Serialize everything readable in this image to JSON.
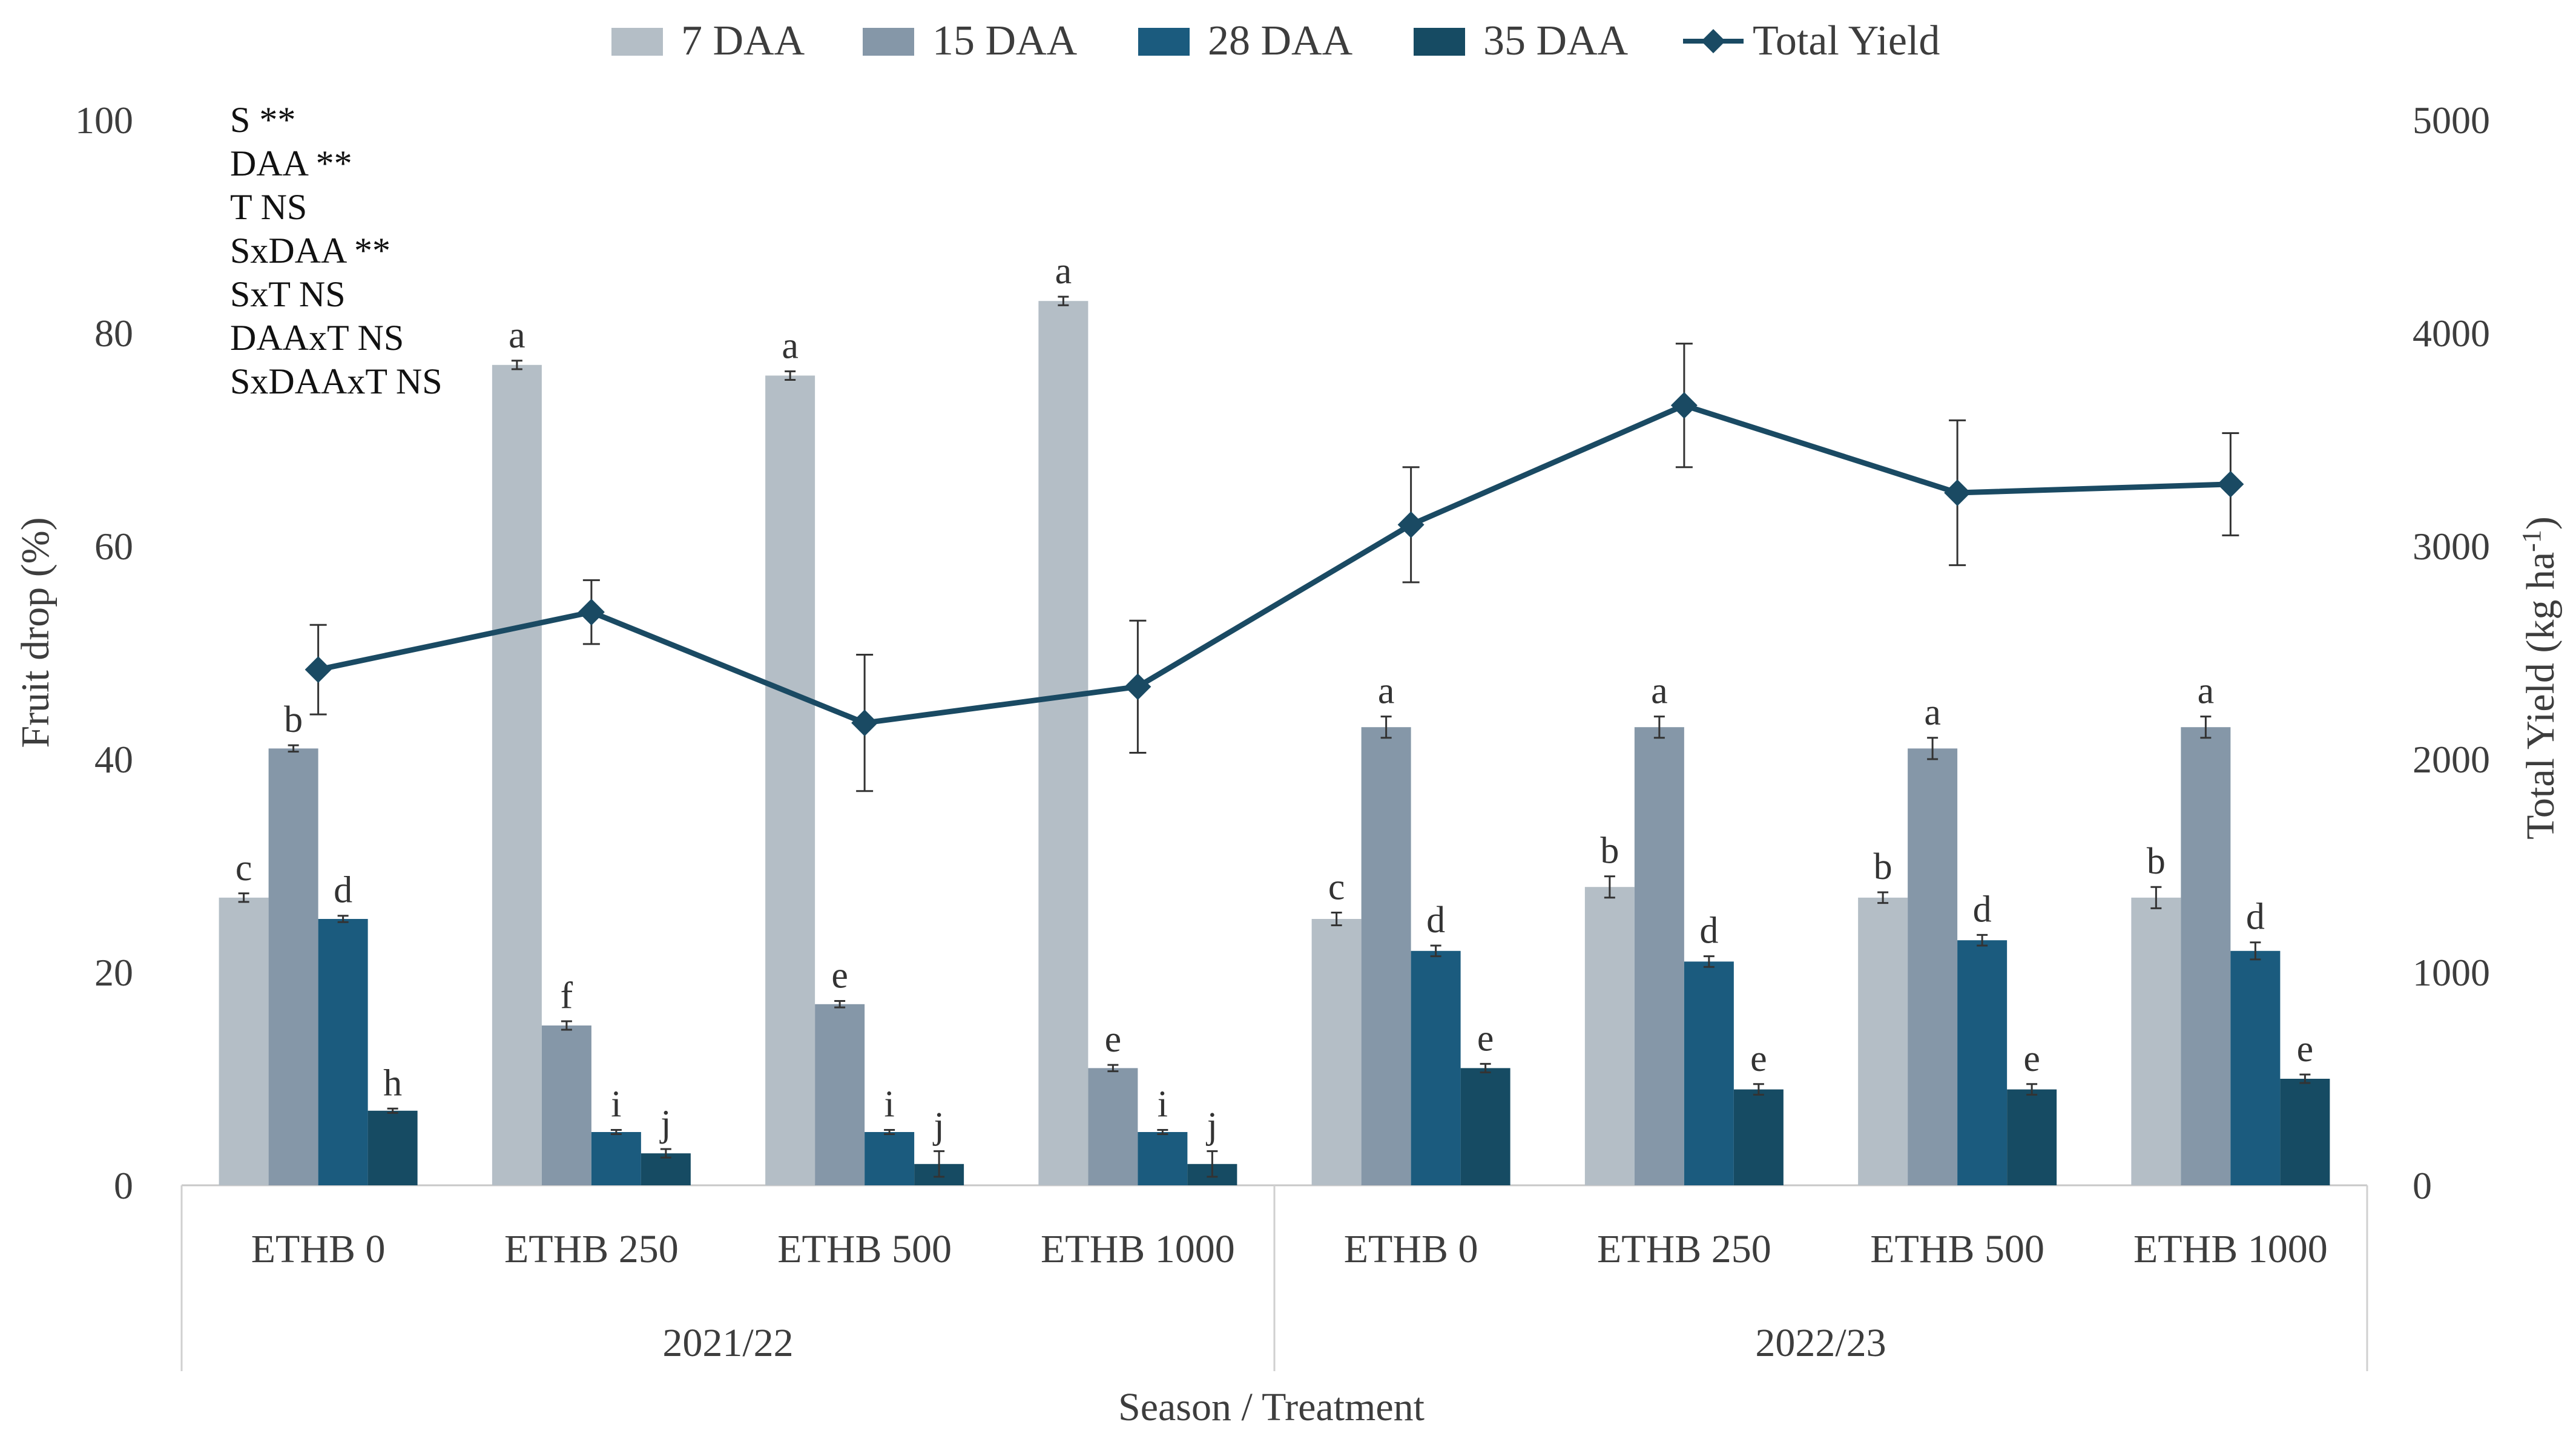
{
  "chart_data": {
    "type": "bar",
    "x_title": "Season / Treatment",
    "y_left_title": "Fruit drop (%)",
    "y_right_title_main": "Total Yield (kg ha",
    "y_right_title_sup": "-1",
    "y_right_title_end": ")",
    "y_left_range": [
      0,
      100
    ],
    "y_right_range": [
      0,
      5000
    ],
    "y_left_ticks": [
      "0",
      "20",
      "40",
      "60",
      "80",
      "100"
    ],
    "y_right_ticks": [
      "0",
      "1000",
      "2000",
      "3000",
      "4000",
      "5000"
    ],
    "legend_position": "top",
    "stats_lines": [
      "S **",
      "DAA **",
      "T NS",
      "SxDAA **",
      "SxT NS",
      "DAAxT NS",
      "SxDAAxT NS"
    ],
    "seasons": [
      {
        "label": "2021/22",
        "categories": [
          "ETHB 0",
          "ETHB 250",
          "ETHB 500",
          "ETHB 1000"
        ]
      },
      {
        "label": "2022/23",
        "categories": [
          "ETHB 0",
          "ETHB 250",
          "ETHB 500",
          "ETHB 1000"
        ]
      }
    ],
    "bar_series": [
      {
        "name": "7 DAA",
        "color": "#b4bec6",
        "values": [
          27,
          77,
          76,
          83,
          25,
          28,
          27,
          27
        ],
        "errors": [
          0.4,
          0.4,
          0.4,
          0.4,
          0.6,
          1.0,
          0.5,
          1.0
        ],
        "letters": [
          "c",
          "a",
          "a",
          "a",
          "c",
          "b",
          "b",
          "b"
        ]
      },
      {
        "name": "15 DAA",
        "color": "#8597a8",
        "values": [
          41,
          15,
          17,
          11,
          43,
          43,
          41,
          43
        ],
        "errors": [
          0.3,
          0.4,
          0.3,
          0.3,
          1.0,
          1.0,
          1.0,
          1.0
        ],
        "letters": [
          "b",
          "f",
          "e",
          "e",
          "a",
          "a",
          "a",
          "a"
        ]
      },
      {
        "name": "28 DAA",
        "color": "#1b5b7e",
        "values": [
          25,
          5,
          5,
          5,
          22,
          21,
          23,
          22
        ],
        "errors": [
          0.3,
          0.2,
          0.2,
          0.2,
          0.5,
          0.5,
          0.5,
          0.8
        ],
        "letters": [
          "d",
          "i",
          "i",
          "i",
          "d",
          "d",
          "d",
          "d"
        ]
      },
      {
        "name": "35 DAA",
        "color": "#164b63",
        "values": [
          7,
          3,
          2,
          2,
          11,
          9,
          9,
          10
        ],
        "errors": [
          0.2,
          0.4,
          1.2,
          1.2,
          0.4,
          0.5,
          0.5,
          0.4
        ],
        "letters": [
          "h",
          "j",
          "j",
          "j",
          "e",
          "e",
          "e",
          "e"
        ]
      }
    ],
    "line_series": {
      "name": "Total Yield",
      "color": "#1a4a63",
      "values": [
        2420,
        2690,
        2170,
        2340,
        3100,
        3660,
        3250,
        3290
      ],
      "errors": [
        210,
        150,
        320,
        310,
        270,
        290,
        340,
        240
      ]
    }
  }
}
